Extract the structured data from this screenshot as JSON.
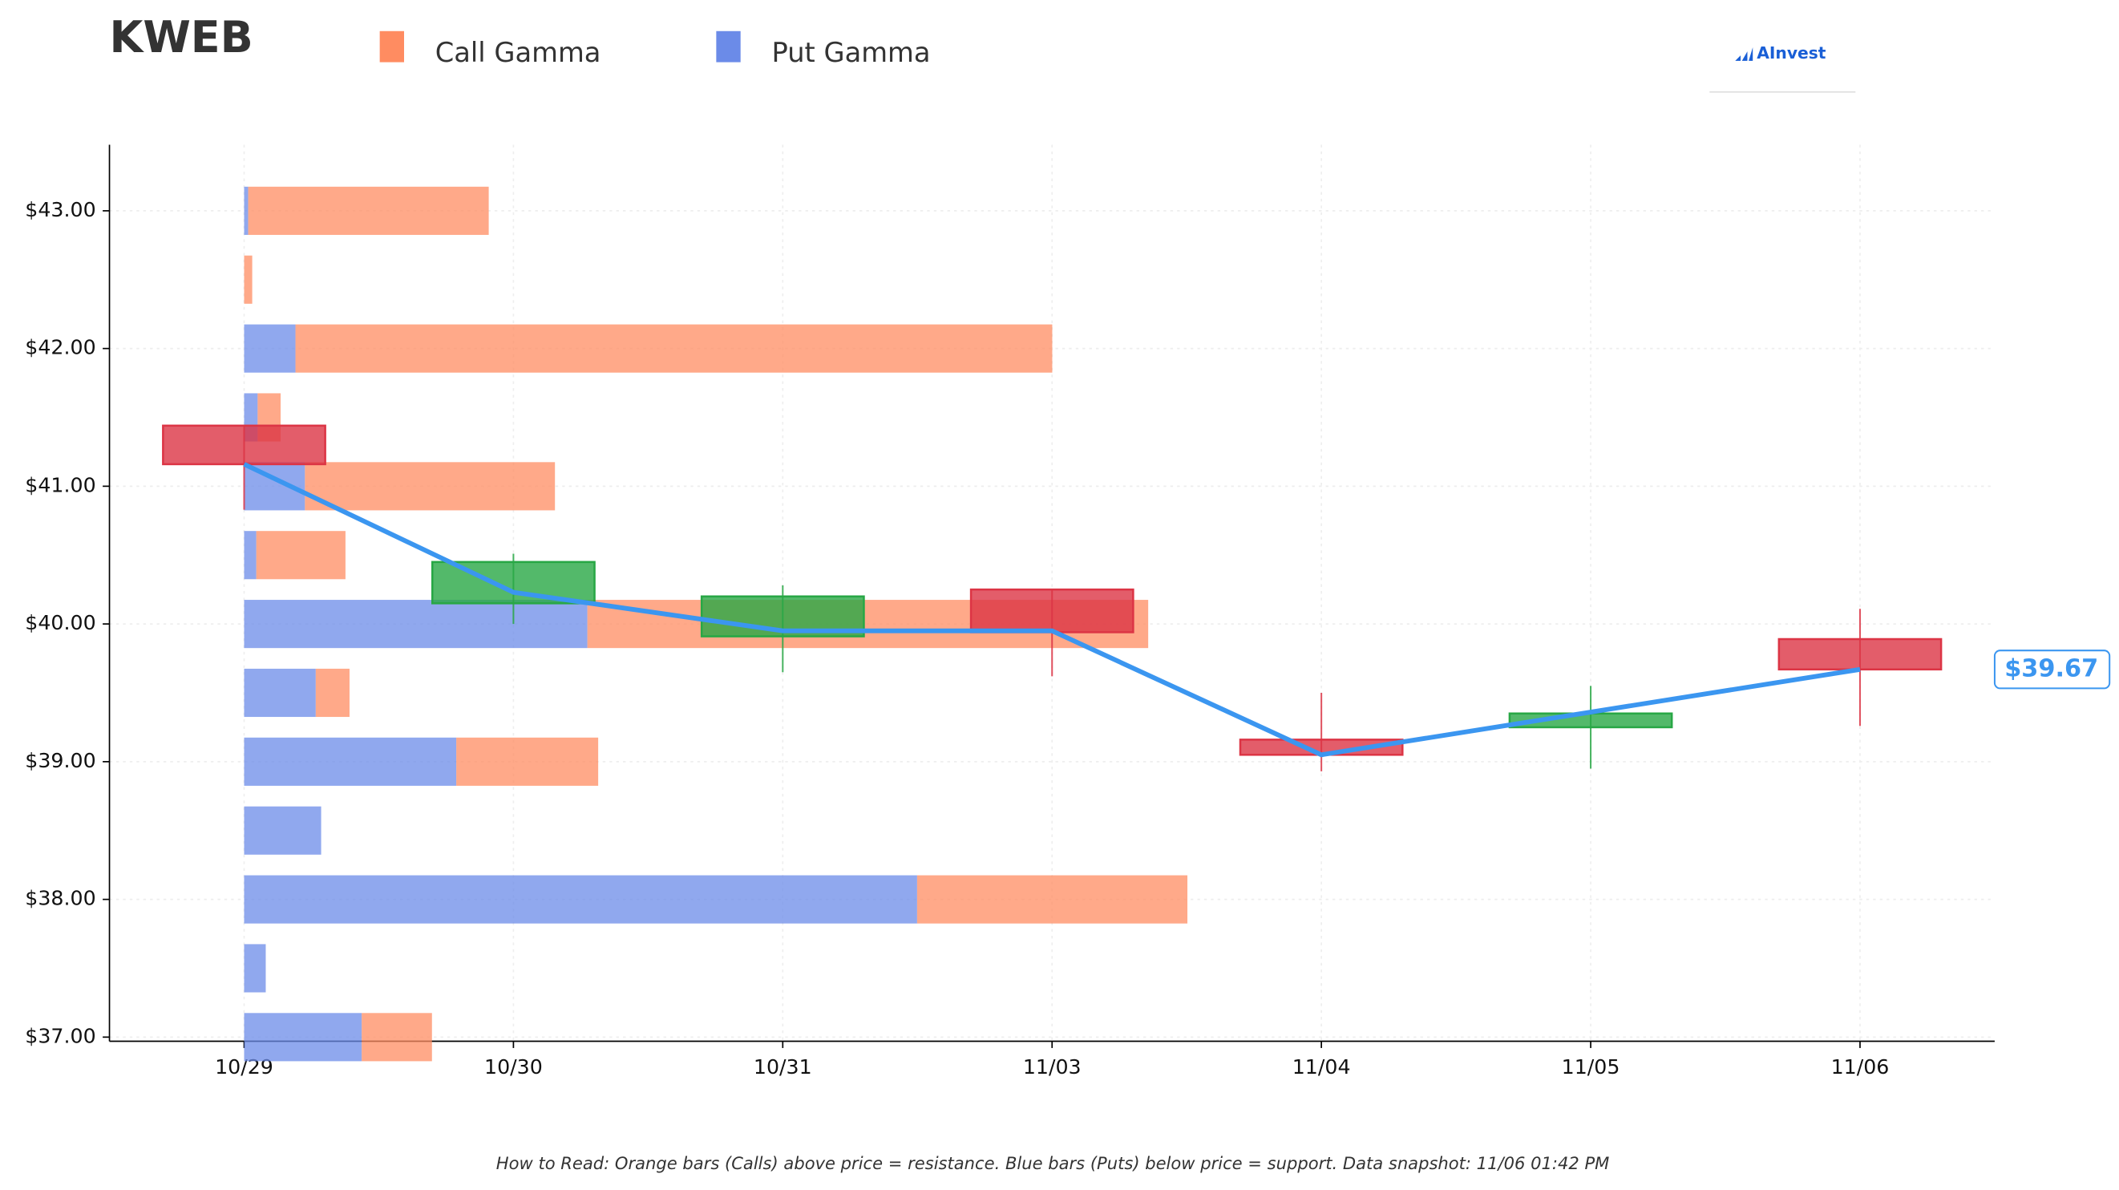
{
  "chart_data": {
    "type": "candlestick",
    "title": "KWEB",
    "categories": [
      "10/29",
      "10/30",
      "10/31",
      "11/03",
      "11/04",
      "11/05",
      "11/06"
    ],
    "open": [
      41.44,
      40.15,
      39.91,
      40.25,
      39.16,
      39.25,
      39.89
    ],
    "high": [
      41.44,
      40.51,
      40.28,
      40.25,
      39.5,
      39.55,
      40.11
    ],
    "low": [
      40.83,
      40.0,
      39.65,
      39.62,
      38.93,
      38.95,
      39.26
    ],
    "close": [
      41.16,
      40.45,
      40.2,
      39.94,
      39.05,
      39.35,
      39.67
    ],
    "up_color": "#28a745",
    "down_color": "#dc3545",
    "price_line": {
      "values": [
        41.16,
        40.23,
        39.95,
        39.95,
        39.05,
        39.36,
        39.67
      ],
      "color": "#3b96f0",
      "last_label": "$39.67"
    },
    "gamma": {
      "strikes": [
        43,
        42.5,
        42,
        41.5,
        41,
        40.5,
        40,
        39.5,
        39,
        38.5,
        38,
        37.5,
        37
      ],
      "series": [
        {
          "name": "Put Gamma",
          "color": "#6b8be8",
          "values": [
            0.3,
            0,
            3.8,
            1.0,
            4.5,
            0.9,
            25.4,
            5.3,
            15.7,
            5.7,
            49.8,
            1.6,
            8.7
          ]
        },
        {
          "name": "Call Gamma",
          "color": "#ff8c61",
          "values": [
            17.8,
            0.6,
            56.0,
            1.7,
            18.5,
            6.6,
            41.5,
            2.5,
            10.5,
            0,
            20.0,
            0,
            5.2
          ]
        }
      ]
    },
    "ylim": [
      36.97,
      43.48
    ],
    "yticks": [
      {
        "value": 37,
        "label": "$37.00"
      },
      {
        "value": 38,
        "label": "$38.00"
      },
      {
        "value": 39,
        "label": "$39.00"
      },
      {
        "value": 40,
        "label": "$40.00"
      },
      {
        "value": 41,
        "label": "$41.00"
      },
      {
        "value": 42,
        "label": "$42.00"
      },
      {
        "value": 43,
        "label": "$43.00"
      }
    ],
    "grid": true,
    "logo": "AInvest",
    "footnote": "How to Read: Orange bars (Calls) above price = resistance. Blue bars (Puts) below price = support. Data snapshot: 11/06 01:42 PM"
  }
}
